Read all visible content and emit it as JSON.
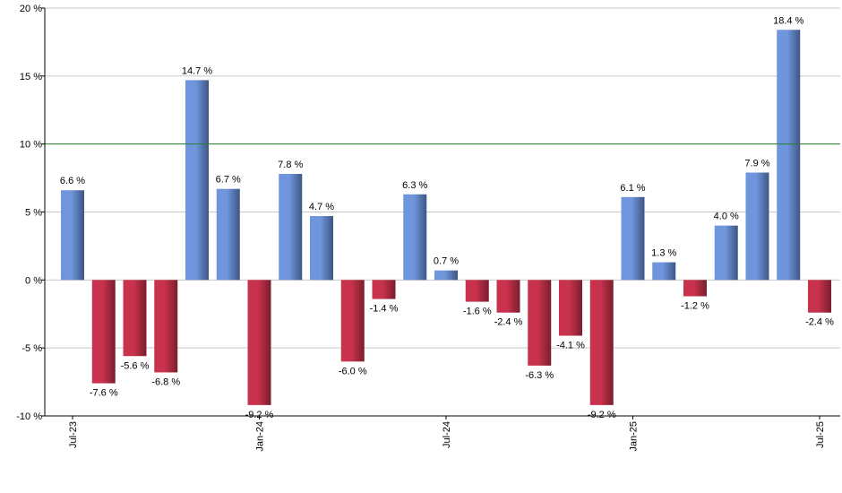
{
  "chart_data": {
    "type": "bar",
    "categories": [
      "2023-07",
      "2023-08",
      "2023-09",
      "2023-10",
      "2023-11",
      "2023-12",
      "2024-01",
      "2024-02",
      "2024-03",
      "2024-04",
      "2024-05",
      "2024-06",
      "2024-07",
      "2024-08",
      "2024-09",
      "2024-10",
      "2024-11",
      "2024-12",
      "2025-01",
      "2025-02",
      "2025-03",
      "2025-04",
      "2025-05",
      "2025-06",
      "2025-07"
    ],
    "values": [
      6.6,
      -7.6,
      -5.6,
      -6.8,
      14.7,
      6.7,
      -9.2,
      7.8,
      4.7,
      -6.0,
      -1.4,
      6.3,
      0.7,
      -1.6,
      -2.4,
      -6.3,
      -4.1,
      -9.2,
      6.1,
      1.3,
      -1.2,
      4.0,
      7.9,
      18.4,
      -2.4
    ],
    "data_labels": [
      "6.6 %",
      "-7.6 %",
      "-5.6 %",
      "-6.8 %",
      "14.7 %",
      "6.7 %",
      "-9.2 %",
      "7.8 %",
      "4.7 %",
      "-6.0 %",
      "-1.4 %",
      "6.3 %",
      "0.7 %",
      "-1.6 %",
      "-2.4 %",
      "-6.3 %",
      "-4.1 %",
      "-9.2 %",
      "6.1 %",
      "1.3 %",
      "-1.2 %",
      "4.0 %",
      "7.9 %",
      "18.4 %",
      "-2.4 %"
    ],
    "x_tick_labels": [
      {
        "label": "Jul-23",
        "category_index": 0
      },
      {
        "label": "Jan-24",
        "category_index": 6
      },
      {
        "label": "Jul-24",
        "category_index": 12
      },
      {
        "label": "Jan-25",
        "category_index": 18
      },
      {
        "label": "Jul-25",
        "category_index": 24
      }
    ],
    "y_ticks": [
      {
        "value": 20,
        "label": "20 %"
      },
      {
        "value": 15,
        "label": "15 %"
      },
      {
        "value": 10,
        "label": "10 %"
      },
      {
        "value": 5,
        "label": "5 %"
      },
      {
        "value": 0,
        "label": "0 %"
      },
      {
        "value": -5,
        "label": "-5 %"
      },
      {
        "value": -10,
        "label": "-10 %"
      }
    ],
    "ylim": [
      -10,
      20
    ],
    "reference_line": {
      "value": 10,
      "color": "#2e7d32"
    },
    "grid": true,
    "colors": {
      "positive": "#6f96dc",
      "positive_dark": "#3d5683",
      "negative": "#c8324c",
      "negative_dark": "#7a1d2d",
      "grid": "#c8c8c8",
      "axis": "#000000"
    },
    "title": "",
    "xlabel": "",
    "ylabel": ""
  }
}
